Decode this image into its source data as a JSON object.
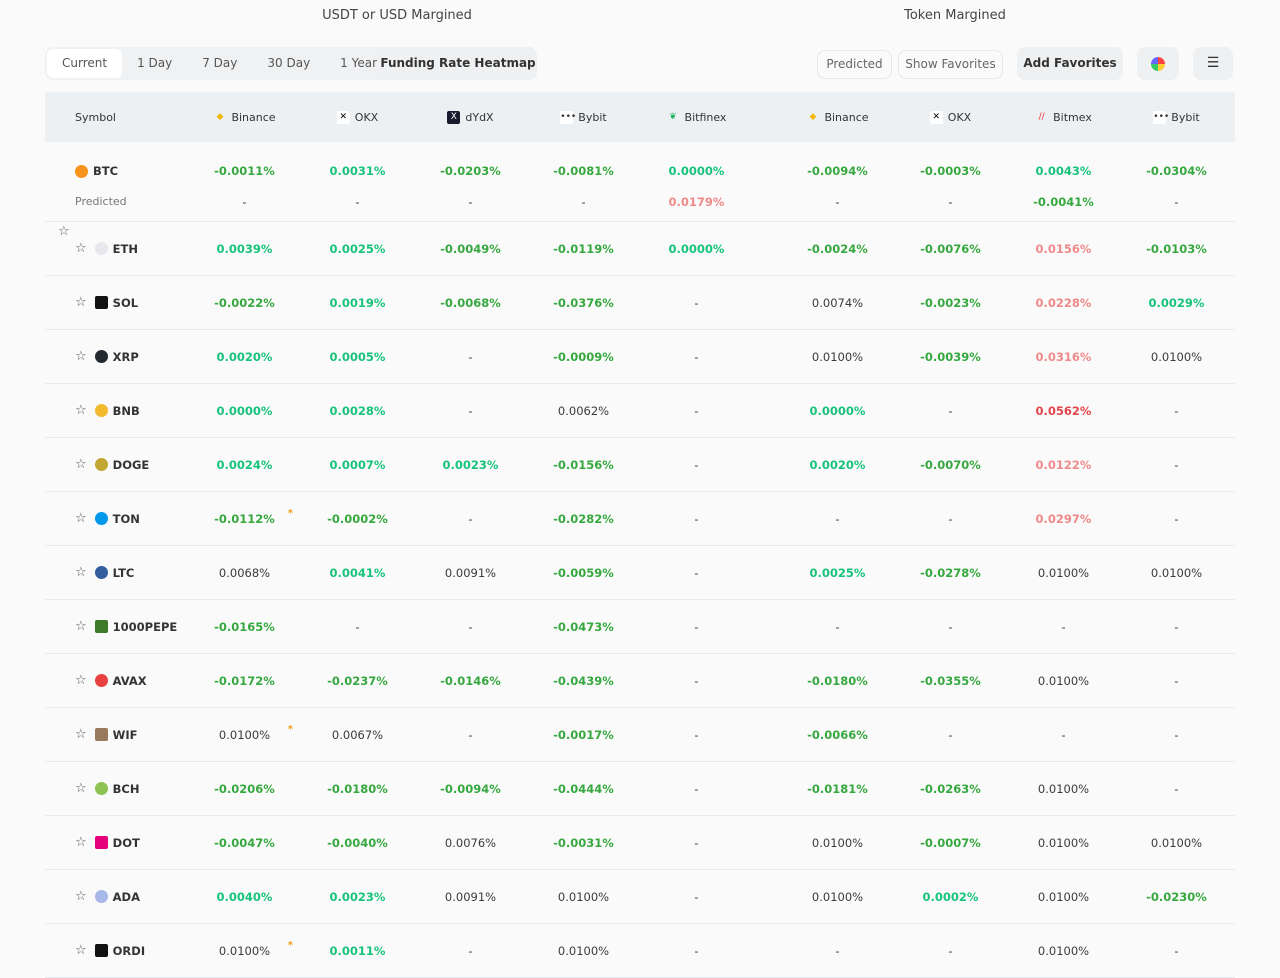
{
  "sections": {
    "usdt": "USDT or USD Margined",
    "token": "Token Margined"
  },
  "tabs": [
    "Current",
    "1 Day",
    "7 Day",
    "30 Day",
    "1 Year"
  ],
  "active_tab": "Current",
  "buttons": {
    "heatmap": "Funding Rate Heatmap",
    "predicted": "Predicted",
    "show_favorites": "Show Favorites",
    "add_favorites": "Add Favorites"
  },
  "colors": {
    "g": "#36a83f",
    "t": "#17c37b",
    "d": "#3a3a3a",
    "r": "#f08a8a",
    "R": "#e4454d",
    "asterisk": "#f0a020"
  },
  "header": {
    "symbol": "Symbol",
    "usdt": [
      {
        "name": "Binance",
        "icon": "binance-icon"
      },
      {
        "name": "OKX",
        "icon": "okx-icon"
      },
      {
        "name": "dYdX",
        "icon": "dydx-icon"
      },
      {
        "name": "Bybit",
        "icon": "bybit-icon"
      },
      {
        "name": "Bitfinex",
        "icon": "bitfinex-icon"
      }
    ],
    "token": [
      {
        "name": "Binance",
        "icon": "binance-icon"
      },
      {
        "name": "OKX",
        "icon": "okx-icon"
      },
      {
        "name": "Bitmex",
        "icon": "bitmex-icon"
      },
      {
        "name": "Bybit",
        "icon": "bybit-icon"
      }
    ]
  },
  "predicted_label": "Predicted",
  "rows": [
    {
      "symbol": "BTC",
      "coin": "#f7931a",
      "cells": [
        [
          "-0.0011%",
          "g"
        ],
        [
          "0.0031%",
          "t"
        ],
        [
          "-0.0203%",
          "g"
        ],
        [
          "-0.0081%",
          "g"
        ],
        [
          "0.0000%",
          "t"
        ],
        [
          "-0.0094%",
          "g"
        ],
        [
          "-0.0003%",
          "g"
        ],
        [
          "0.0043%",
          "t"
        ],
        [
          "-0.0304%",
          "g"
        ]
      ],
      "predicted": [
        [
          "-",
          "d"
        ],
        [
          "-",
          "d"
        ],
        [
          "-",
          "d"
        ],
        [
          "-",
          "d"
        ],
        [
          "0.0179%",
          "r"
        ],
        [
          "-",
          "d"
        ],
        [
          "-",
          "d"
        ],
        [
          "-0.0041%",
          "g"
        ],
        [
          "-",
          "d"
        ]
      ]
    },
    {
      "symbol": "ETH",
      "coin": "#e6e8ee",
      "cells": [
        [
          "0.0039%",
          "t"
        ],
        [
          "0.0025%",
          "t"
        ],
        [
          "-0.0049%",
          "g"
        ],
        [
          "-0.0119%",
          "g"
        ],
        [
          "0.0000%",
          "t"
        ],
        [
          "-0.0024%",
          "g"
        ],
        [
          "-0.0076%",
          "g"
        ],
        [
          "0.0156%",
          "r"
        ],
        [
          "-0.0103%",
          "g"
        ]
      ]
    },
    {
      "symbol": "SOL",
      "coin": "#111",
      "cells": [
        [
          "-0.0022%",
          "g"
        ],
        [
          "0.0019%",
          "t"
        ],
        [
          "-0.0068%",
          "g"
        ],
        [
          "-0.0376%",
          "g"
        ],
        [
          "-",
          "d"
        ],
        [
          "0.0074%",
          "d"
        ],
        [
          "-0.0023%",
          "g"
        ],
        [
          "0.0228%",
          "r"
        ],
        [
          "0.0029%",
          "t"
        ]
      ]
    },
    {
      "symbol": "XRP",
      "coin": "#23292f",
      "cells": [
        [
          "0.0020%",
          "t"
        ],
        [
          "0.0005%",
          "t"
        ],
        [
          "-",
          "d"
        ],
        [
          "-0.0009%",
          "g"
        ],
        [
          "-",
          "d"
        ],
        [
          "0.0100%",
          "d"
        ],
        [
          "-0.0039%",
          "g"
        ],
        [
          "0.0316%",
          "r"
        ],
        [
          "0.0100%",
          "d"
        ]
      ]
    },
    {
      "symbol": "BNB",
      "coin": "#f3ba2f",
      "cells": [
        [
          "0.0000%",
          "t"
        ],
        [
          "0.0028%",
          "t"
        ],
        [
          "-",
          "d"
        ],
        [
          "0.0062%",
          "d"
        ],
        [
          "-",
          "d"
        ],
        [
          "0.0000%",
          "t"
        ],
        [
          "-",
          "d"
        ],
        [
          "0.0562%",
          "R"
        ],
        [
          "-",
          "d"
        ]
      ]
    },
    {
      "symbol": "DOGE",
      "coin": "#c2a633",
      "cells": [
        [
          "0.0024%",
          "t"
        ],
        [
          "0.0007%",
          "t"
        ],
        [
          "0.0023%",
          "t"
        ],
        [
          "-0.0156%",
          "g"
        ],
        [
          "-",
          "d"
        ],
        [
          "0.0020%",
          "t"
        ],
        [
          "-0.0070%",
          "g"
        ],
        [
          "0.0122%",
          "r"
        ],
        [
          "-",
          "d"
        ]
      ]
    },
    {
      "symbol": "TON",
      "coin": "#0098ea",
      "ast": true,
      "cells": [
        [
          "-0.0112%",
          "g"
        ],
        [
          "-0.0002%",
          "g"
        ],
        [
          "-",
          "d"
        ],
        [
          "-0.0282%",
          "g"
        ],
        [
          "-",
          "d"
        ],
        [
          "-",
          "d"
        ],
        [
          "-",
          "d"
        ],
        [
          "0.0297%",
          "r"
        ],
        [
          "-",
          "d"
        ]
      ]
    },
    {
      "symbol": "LTC",
      "coin": "#345d9d",
      "cells": [
        [
          "0.0068%",
          "d"
        ],
        [
          "0.0041%",
          "t"
        ],
        [
          "0.0091%",
          "d"
        ],
        [
          "-0.0059%",
          "g"
        ],
        [
          "-",
          "d"
        ],
        [
          "0.0025%",
          "t"
        ],
        [
          "-0.0278%",
          "g"
        ],
        [
          "0.0100%",
          "d"
        ],
        [
          "0.0100%",
          "d"
        ]
      ]
    },
    {
      "symbol": "1000PEPE",
      "coin": "#3d7a2a",
      "cells": [
        [
          "-0.0165%",
          "g"
        ],
        [
          "-",
          "d"
        ],
        [
          "-",
          "d"
        ],
        [
          "-0.0473%",
          "g"
        ],
        [
          "-",
          "d"
        ],
        [
          "-",
          "d"
        ],
        [
          "-",
          "d"
        ],
        [
          "-",
          "d"
        ],
        [
          "-",
          "d"
        ]
      ]
    },
    {
      "symbol": "AVAX",
      "coin": "#e84142",
      "cells": [
        [
          "-0.0172%",
          "g"
        ],
        [
          "-0.0237%",
          "g"
        ],
        [
          "-0.0146%",
          "g"
        ],
        [
          "-0.0439%",
          "g"
        ],
        [
          "-",
          "d"
        ],
        [
          "-0.0180%",
          "g"
        ],
        [
          "-0.0355%",
          "g"
        ],
        [
          "0.0100%",
          "d"
        ],
        [
          "-",
          "d"
        ]
      ]
    },
    {
      "symbol": "WIF",
      "coin": "#9a7a5c",
      "ast": true,
      "cells": [
        [
          "0.0100%",
          "d"
        ],
        [
          "0.0067%",
          "d"
        ],
        [
          "-",
          "d"
        ],
        [
          "-0.0017%",
          "g"
        ],
        [
          "-",
          "d"
        ],
        [
          "-0.0066%",
          "g"
        ],
        [
          "-",
          "d"
        ],
        [
          "-",
          "d"
        ],
        [
          "-",
          "d"
        ]
      ]
    },
    {
      "symbol": "BCH",
      "coin": "#8dc351",
      "cells": [
        [
          "-0.0206%",
          "g"
        ],
        [
          "-0.0180%",
          "g"
        ],
        [
          "-0.0094%",
          "g"
        ],
        [
          "-0.0444%",
          "g"
        ],
        [
          "-",
          "d"
        ],
        [
          "-0.0181%",
          "g"
        ],
        [
          "-0.0263%",
          "g"
        ],
        [
          "0.0100%",
          "d"
        ],
        [
          "-",
          "d"
        ]
      ]
    },
    {
      "symbol": "DOT",
      "coin": "#e6007a",
      "cells": [
        [
          "-0.0047%",
          "g"
        ],
        [
          "-0.0040%",
          "g"
        ],
        [
          "0.0076%",
          "d"
        ],
        [
          "-0.0031%",
          "g"
        ],
        [
          "-",
          "d"
        ],
        [
          "0.0100%",
          "d"
        ],
        [
          "-0.0007%",
          "g"
        ],
        [
          "0.0100%",
          "d"
        ],
        [
          "0.0100%",
          "d"
        ]
      ]
    },
    {
      "symbol": "ADA",
      "coin": "#a8b8e8",
      "cells": [
        [
          "0.0040%",
          "t"
        ],
        [
          "0.0023%",
          "t"
        ],
        [
          "0.0091%",
          "d"
        ],
        [
          "0.0100%",
          "d"
        ],
        [
          "-",
          "d"
        ],
        [
          "0.0100%",
          "d"
        ],
        [
          "0.0002%",
          "t"
        ],
        [
          "0.0100%",
          "d"
        ],
        [
          "-0.0230%",
          "g"
        ]
      ]
    },
    {
      "symbol": "ORDI",
      "coin": "#111",
      "ast": true,
      "cells": [
        [
          "0.0100%",
          "d"
        ],
        [
          "0.0011%",
          "t"
        ],
        [
          "-",
          "d"
        ],
        [
          "0.0100%",
          "d"
        ],
        [
          "-",
          "d"
        ],
        [
          "-",
          "d"
        ],
        [
          "-",
          "d"
        ],
        [
          "0.0100%",
          "d"
        ],
        [
          "-",
          "d"
        ]
      ]
    }
  ]
}
